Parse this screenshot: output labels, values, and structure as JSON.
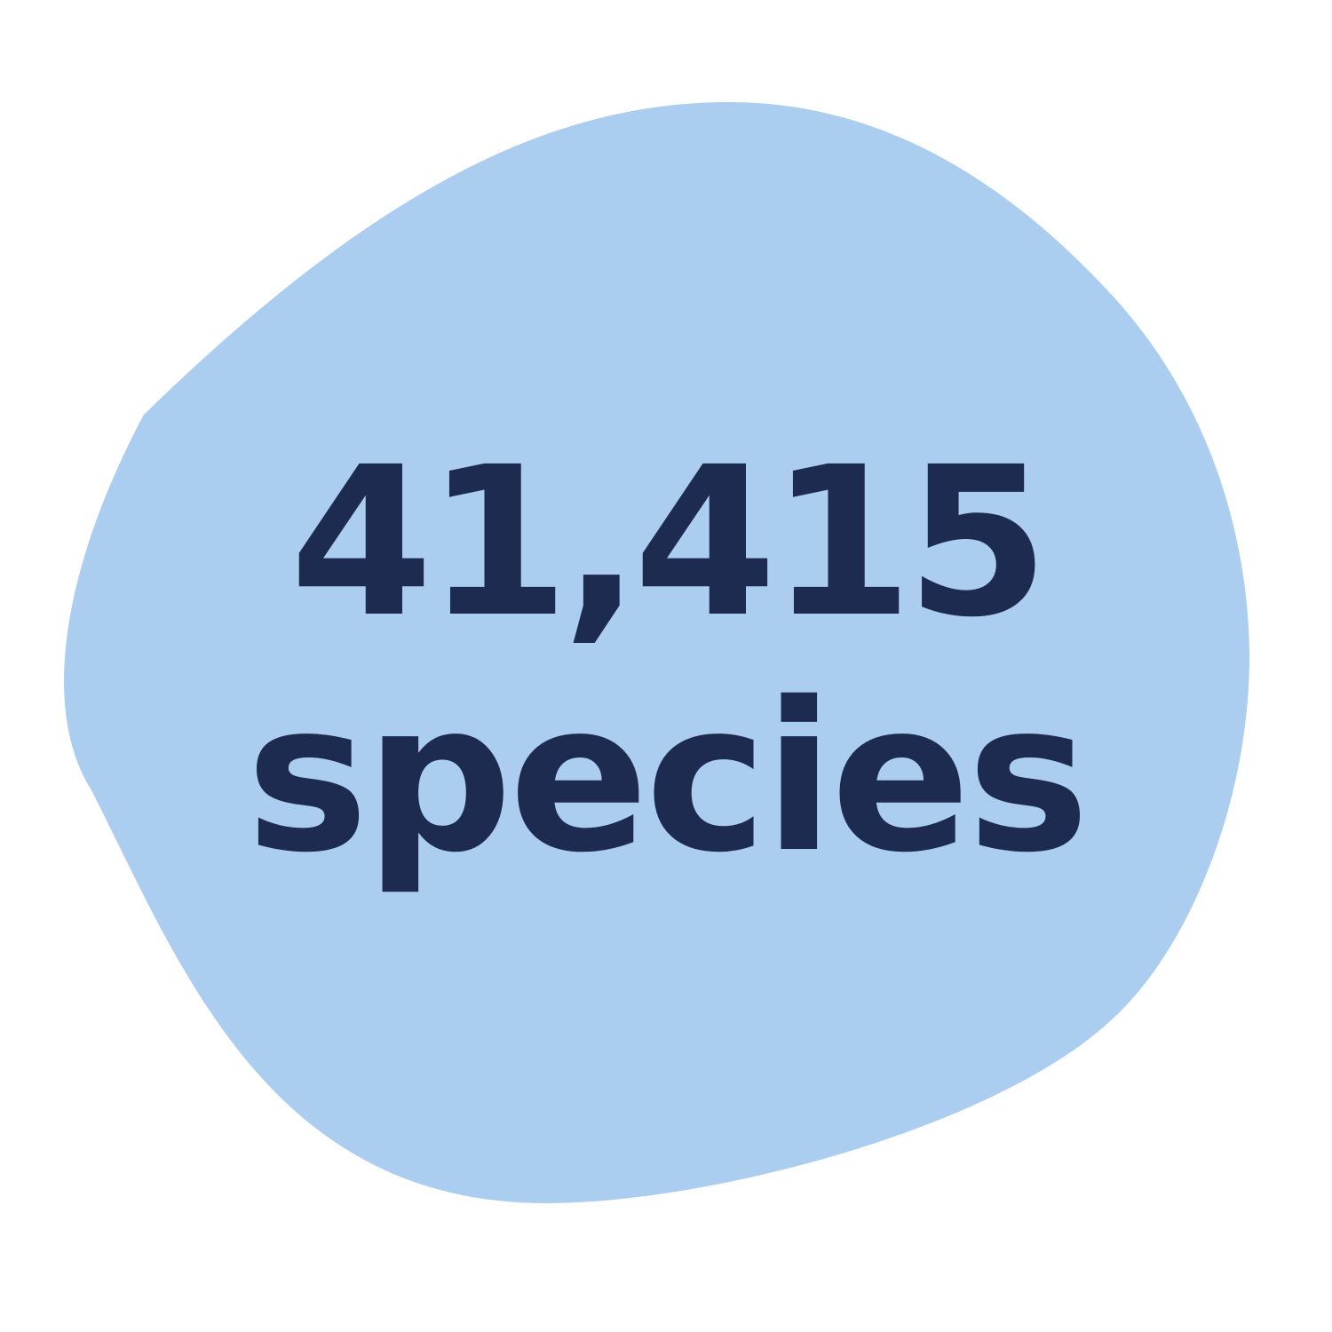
{
  "stat": {
    "number": "41,415",
    "label": "species"
  },
  "colors": {
    "background": "#ffffff",
    "blob": "#abcdef",
    "text": "#1e2b50"
  }
}
